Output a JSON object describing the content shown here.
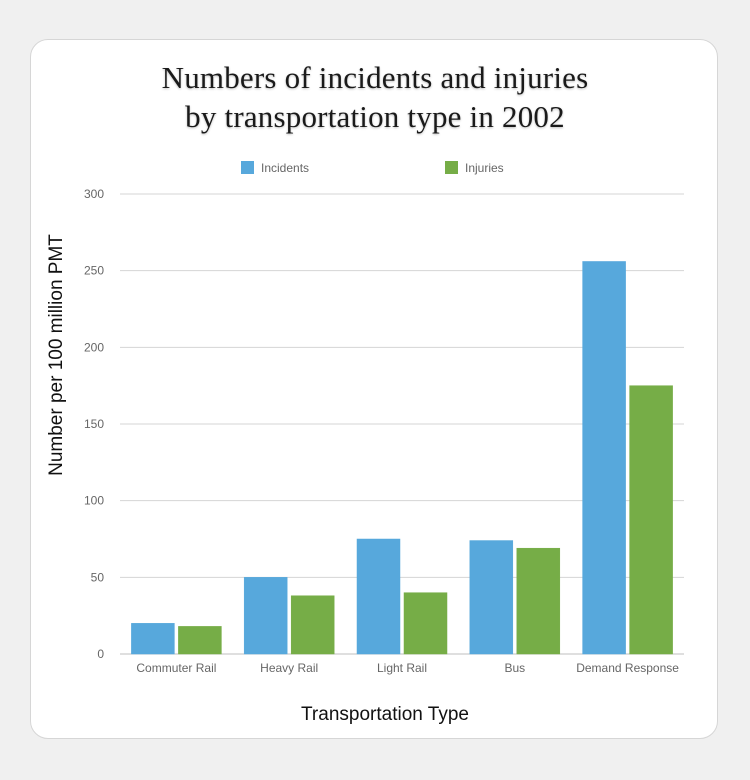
{
  "chart_data": {
    "type": "bar",
    "title_lines": [
      "Numbers of incidents and injuries",
      "by transportation type in 2002"
    ],
    "xlabel": "Transportation Type",
    "ylabel": "Number per 100 million PMT",
    "categories": [
      "Commuter Rail",
      "Heavy Rail",
      "Light Rail",
      "Bus",
      "Demand Response"
    ],
    "series": [
      {
        "name": "Incidents",
        "color": "#57a8dc",
        "values": [
          20,
          50,
          75,
          74,
          256
        ]
      },
      {
        "name": "Injuries",
        "color": "#76ad47",
        "values": [
          18,
          38,
          40,
          69,
          175
        ]
      }
    ],
    "ylim": [
      0,
      300
    ],
    "yticks": [
      0,
      50,
      100,
      150,
      200,
      250,
      300
    ],
    "grid": true,
    "legend_position": "top"
  }
}
